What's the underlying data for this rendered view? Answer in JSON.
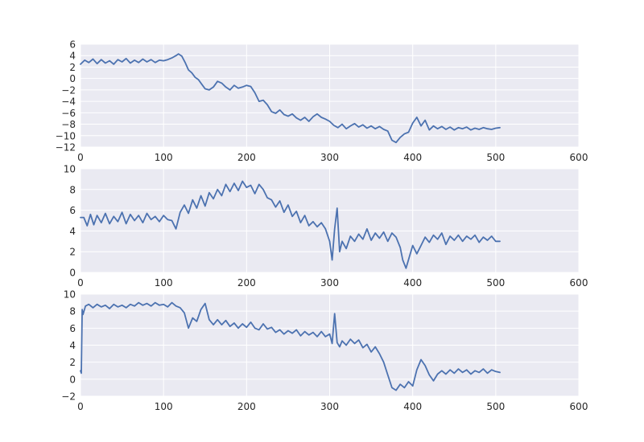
{
  "chart_data": [
    {
      "type": "line",
      "xlim": [
        0,
        600
      ],
      "ylim": [
        -12,
        6
      ],
      "xticks": [
        0,
        100,
        200,
        300,
        400,
        500,
        600
      ],
      "yticks": [
        -12,
        -10,
        -8,
        -6,
        -4,
        -2,
        0,
        2,
        4,
        6
      ],
      "xtick_labels": [
        "0",
        "100",
        "200",
        "300",
        "400",
        "500",
        "600"
      ],
      "ytick_labels": [
        "−12",
        "−10",
        "−8",
        "−6",
        "−4",
        "−2",
        "0",
        "2",
        "4",
        "6"
      ],
      "grid": true,
      "series": [
        {
          "color": "#4c72b0",
          "x": [
            0,
            5,
            10,
            15,
            20,
            25,
            30,
            35,
            40,
            45,
            50,
            55,
            60,
            65,
            70,
            75,
            80,
            85,
            90,
            95,
            100,
            105,
            110,
            115,
            118,
            122,
            126,
            130,
            134,
            138,
            142,
            146,
            150,
            155,
            160,
            165,
            170,
            175,
            180,
            185,
            190,
            195,
            200,
            205,
            210,
            215,
            220,
            225,
            230,
            235,
            240,
            245,
            250,
            255,
            260,
            265,
            270,
            275,
            280,
            285,
            290,
            295,
            300,
            305,
            310,
            315,
            320,
            325,
            330,
            335,
            340,
            345,
            350,
            355,
            360,
            365,
            370,
            375,
            380,
            385,
            390,
            395,
            400,
            405,
            410,
            415,
            420,
            425,
            430,
            435,
            440,
            445,
            450,
            455,
            460,
            465,
            470,
            475,
            480,
            485,
            490,
            495,
            500,
            505
          ],
          "y": [
            2.5,
            3.2,
            2.8,
            3.4,
            2.6,
            3.3,
            2.7,
            3.1,
            2.5,
            3.3,
            2.9,
            3.5,
            2.7,
            3.2,
            2.8,
            3.4,
            2.9,
            3.3,
            2.8,
            3.2,
            3.1,
            3.3,
            3.6,
            4.0,
            4.3,
            3.9,
            2.8,
            1.5,
            1.0,
            0.2,
            -0.2,
            -1.0,
            -1.8,
            -2.0,
            -1.5,
            -0.5,
            -0.8,
            -1.5,
            -2.0,
            -1.2,
            -1.7,
            -1.5,
            -1.2,
            -1.4,
            -2.5,
            -4.0,
            -3.8,
            -4.6,
            -5.8,
            -6.1,
            -5.5,
            -6.3,
            -6.6,
            -6.2,
            -6.9,
            -7.3,
            -6.8,
            -7.5,
            -6.7,
            -6.2,
            -6.8,
            -7.1,
            -7.5,
            -8.2,
            -8.6,
            -8.0,
            -8.8,
            -8.3,
            -7.9,
            -8.5,
            -8.1,
            -8.7,
            -8.3,
            -8.8,
            -8.4,
            -8.9,
            -9.2,
            -10.8,
            -11.2,
            -10.3,
            -9.7,
            -9.4,
            -7.8,
            -6.8,
            -8.3,
            -7.3,
            -9.0,
            -8.3,
            -8.8,
            -8.4,
            -8.9,
            -8.5,
            -9.0,
            -8.6,
            -8.8,
            -8.5,
            -9.0,
            -8.7,
            -8.9,
            -8.6,
            -8.8,
            -8.9,
            -8.7,
            -8.6
          ]
        }
      ]
    },
    {
      "type": "line",
      "xlim": [
        0,
        600
      ],
      "ylim": [
        0,
        10
      ],
      "xticks": [
        0,
        100,
        200,
        300,
        400,
        500,
        600
      ],
      "yticks": [
        0,
        2,
        4,
        6,
        8,
        10
      ],
      "xtick_labels": [
        "0",
        "100",
        "200",
        "300",
        "400",
        "500",
        "600"
      ],
      "ytick_labels": [
        "0",
        "2",
        "4",
        "6",
        "8",
        "10"
      ],
      "grid": true,
      "series": [
        {
          "color": "#4c72b0",
          "x": [
            0,
            4,
            8,
            12,
            16,
            20,
            25,
            30,
            35,
            40,
            45,
            50,
            55,
            60,
            65,
            70,
            75,
            80,
            85,
            90,
            95,
            100,
            105,
            110,
            115,
            120,
            125,
            130,
            135,
            140,
            145,
            150,
            155,
            160,
            165,
            170,
            175,
            180,
            185,
            190,
            195,
            200,
            205,
            210,
            215,
            220,
            225,
            230,
            235,
            240,
            245,
            250,
            255,
            260,
            265,
            270,
            275,
            280,
            285,
            290,
            295,
            300,
            303,
            306,
            309,
            312,
            315,
            320,
            325,
            330,
            335,
            340,
            345,
            350,
            355,
            360,
            365,
            370,
            375,
            380,
            385,
            388,
            392,
            396,
            400,
            405,
            410,
            415,
            420,
            425,
            430,
            435,
            440,
            445,
            450,
            455,
            460,
            465,
            470,
            475,
            480,
            485,
            490,
            495,
            500,
            505
          ],
          "y": [
            5.3,
            5.3,
            4.5,
            5.6,
            4.6,
            5.5,
            4.8,
            5.7,
            4.7,
            5.4,
            4.9,
            5.8,
            4.7,
            5.6,
            5.0,
            5.5,
            4.8,
            5.7,
            5.1,
            5.4,
            4.9,
            5.5,
            5.1,
            5.0,
            4.2,
            5.8,
            6.5,
            5.7,
            7.0,
            6.2,
            7.4,
            6.4,
            7.7,
            7.1,
            8.0,
            7.4,
            8.5,
            7.8,
            8.6,
            7.9,
            8.8,
            8.2,
            8.4,
            7.6,
            8.5,
            8.0,
            7.2,
            7.0,
            6.3,
            6.9,
            5.8,
            6.5,
            5.4,
            5.9,
            4.8,
            5.5,
            4.5,
            4.9,
            4.4,
            4.8,
            4.2,
            3.0,
            1.2,
            4.2,
            6.2,
            2.0,
            3.0,
            2.3,
            3.5,
            3.0,
            3.7,
            3.2,
            4.2,
            3.1,
            3.8,
            3.3,
            3.9,
            3.0,
            3.8,
            3.4,
            2.4,
            1.2,
            0.4,
            1.5,
            2.6,
            1.8,
            2.6,
            3.4,
            2.9,
            3.6,
            3.2,
            3.8,
            2.7,
            3.5,
            3.1,
            3.6,
            3.0,
            3.5,
            3.2,
            3.6,
            2.9,
            3.4,
            3.1,
            3.5,
            3.0,
            3.0
          ]
        }
      ]
    },
    {
      "type": "line",
      "xlim": [
        0,
        600
      ],
      "ylim": [
        -2,
        10
      ],
      "xticks": [
        0,
        100,
        200,
        300,
        400,
        500,
        600
      ],
      "yticks": [
        -2,
        0,
        2,
        4,
        6,
        8,
        10
      ],
      "xtick_labels": [
        "0",
        "100",
        "200",
        "300",
        "400",
        "500",
        "600"
      ],
      "ytick_labels": [
        "−2",
        "0",
        "2",
        "4",
        "6",
        "8",
        "10"
      ],
      "grid": true,
      "series": [
        {
          "color": "#4c72b0",
          "x": [
            0,
            1,
            2,
            3,
            6,
            10,
            15,
            20,
            25,
            30,
            35,
            40,
            45,
            50,
            55,
            60,
            65,
            70,
            75,
            80,
            85,
            90,
            95,
            100,
            105,
            110,
            115,
            120,
            125,
            130,
            135,
            140,
            145,
            150,
            155,
            160,
            165,
            170,
            175,
            180,
            185,
            190,
            195,
            200,
            205,
            210,
            215,
            220,
            225,
            230,
            235,
            240,
            245,
            250,
            255,
            260,
            265,
            270,
            275,
            280,
            285,
            290,
            295,
            300,
            303,
            306,
            309,
            312,
            315,
            320,
            325,
            330,
            335,
            340,
            345,
            350,
            355,
            360,
            365,
            370,
            375,
            380,
            385,
            390,
            395,
            400,
            405,
            410,
            415,
            420,
            425,
            430,
            435,
            440,
            445,
            450,
            455,
            460,
            465,
            470,
            475,
            480,
            485,
            490,
            495,
            500,
            505
          ],
          "y": [
            1.0,
            0.7,
            8.2,
            7.6,
            8.6,
            8.8,
            8.4,
            8.8,
            8.5,
            8.7,
            8.3,
            8.8,
            8.5,
            8.7,
            8.4,
            8.8,
            8.6,
            9.0,
            8.7,
            8.9,
            8.6,
            9.0,
            8.7,
            8.8,
            8.5,
            9.0,
            8.6,
            8.4,
            7.8,
            6.0,
            7.2,
            6.8,
            8.2,
            8.9,
            7.0,
            6.4,
            7.0,
            6.4,
            6.9,
            6.2,
            6.6,
            6.0,
            6.5,
            6.1,
            6.7,
            6.0,
            5.8,
            6.5,
            5.9,
            6.1,
            5.5,
            5.8,
            5.3,
            5.7,
            5.4,
            5.8,
            5.1,
            5.6,
            5.2,
            5.5,
            5.0,
            5.6,
            5.0,
            5.3,
            4.2,
            7.7,
            4.3,
            3.8,
            4.5,
            4.0,
            4.7,
            4.2,
            4.6,
            3.7,
            4.1,
            3.2,
            3.8,
            3.0,
            2.0,
            0.5,
            -1.0,
            -1.3,
            -0.6,
            -1.0,
            -0.3,
            -0.8,
            1.1,
            2.3,
            1.6,
            0.5,
            -0.2,
            0.6,
            1.0,
            0.6,
            1.1,
            0.7,
            1.2,
            0.8,
            1.1,
            0.6,
            1.0,
            0.8,
            1.2,
            0.7,
            1.1,
            0.9,
            0.8
          ]
        }
      ]
    }
  ]
}
